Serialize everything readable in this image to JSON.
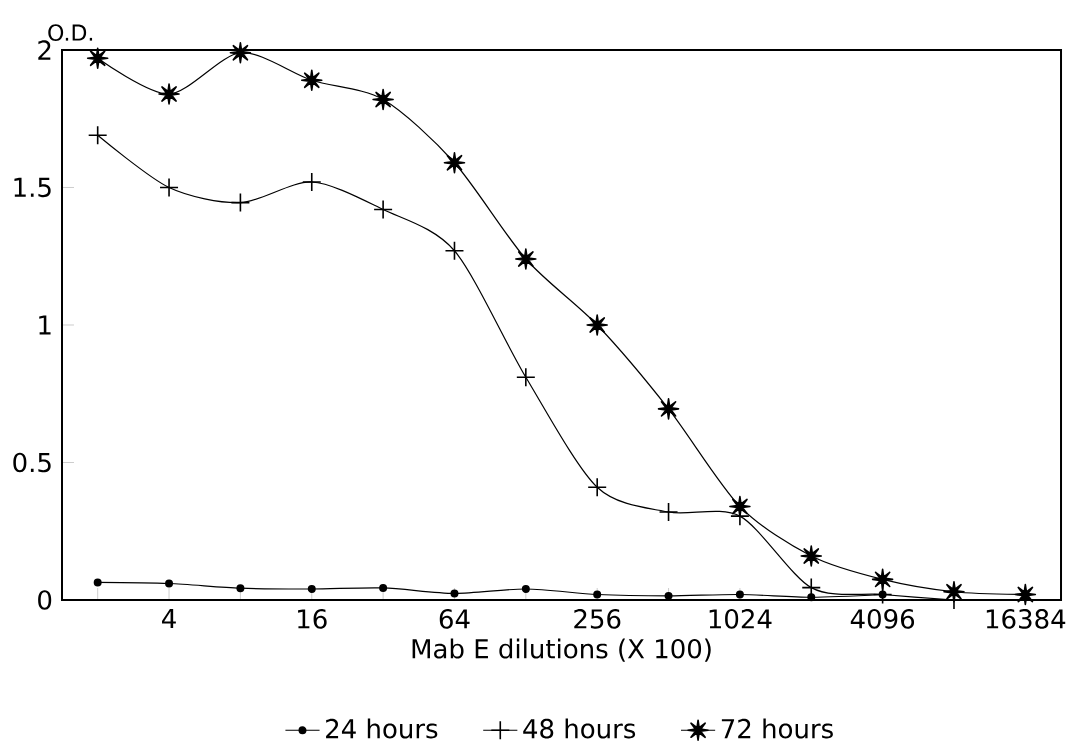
{
  "chart_data": {
    "type": "line",
    "xlabel": "Mab E dilutions (X 100)",
    "ylabel": "O.D.",
    "categories": [
      null,
      "4",
      null,
      "16",
      null,
      "64",
      null,
      "256",
      null,
      "1024",
      null,
      "4096",
      null,
      "16384"
    ],
    "ylim": [
      0,
      2
    ],
    "yticks": [
      0,
      0.5,
      1,
      1.5,
      2
    ],
    "grid": false,
    "legend": "bottom",
    "series": [
      {
        "name": "24 hours",
        "color": "#000000",
        "marker": "circle",
        "values": [
          0.064,
          0.06,
          0.043,
          0.04,
          0.044,
          0.024,
          0.04,
          0.02,
          0.015,
          0.02,
          0.01,
          0.02,
          null,
          null
        ]
      },
      {
        "name": "48 hours",
        "color": "#000000",
        "marker": "cross",
        "values": [
          1.69,
          1.5,
          1.445,
          1.52,
          1.42,
          1.27,
          0.81,
          0.41,
          0.32,
          0.305,
          0.045,
          0.02,
          0.0,
          null
        ]
      },
      {
        "name": "72 hours",
        "color": "#000000",
        "marker": "star",
        "values": [
          1.97,
          1.84,
          1.99,
          1.89,
          1.82,
          1.59,
          1.24,
          1.0,
          0.695,
          0.34,
          0.16,
          0.075,
          0.03,
          0.02
        ]
      }
    ]
  }
}
